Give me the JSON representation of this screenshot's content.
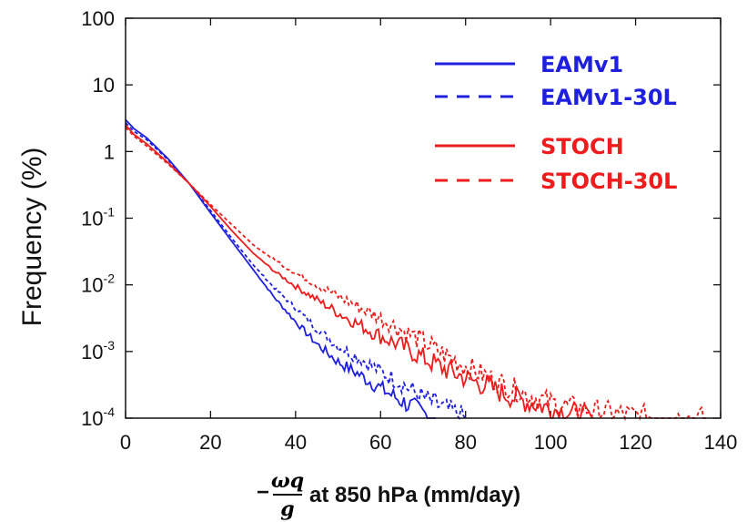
{
  "chart_data": {
    "type": "line",
    "title": "",
    "ylabel": "Frequency (%)",
    "xlabel": {
      "prefix": "−",
      "numerator": "ωq",
      "denominator": "g",
      "suffix": "at 850 hPa (mm/day)"
    },
    "xlim": [
      0,
      140
    ],
    "ylim": [
      0.0001,
      100
    ],
    "yscale": "log",
    "xticks": [
      "0",
      "20",
      "40",
      "60",
      "80",
      "100",
      "120",
      "140"
    ],
    "yticks": [
      {
        "base": "100",
        "exp": ""
      },
      {
        "base": "10",
        "exp": ""
      },
      {
        "base": "1",
        "exp": ""
      },
      {
        "base": "10",
        "exp": "-1"
      },
      {
        "base": "10",
        "exp": "-2"
      },
      {
        "base": "10",
        "exp": "-3"
      },
      {
        "base": "10",
        "exp": "-4"
      }
    ],
    "legend_position": "top-right",
    "series": [
      {
        "name": "EAMv1",
        "color": "#1f1fe0",
        "dash": "solid",
        "x": [
          0,
          2,
          5,
          10,
          15,
          20,
          25,
          30,
          35,
          40,
          45,
          50,
          55,
          60,
          65,
          70,
          73
        ],
        "y": [
          3.0,
          2.2,
          1.6,
          0.78,
          0.33,
          0.12,
          0.045,
          0.017,
          0.0065,
          0.0028,
          0.0013,
          0.0007,
          0.00045,
          0.00028,
          0.00018,
          0.00012,
          0.0001
        ]
      },
      {
        "name": "EAMv1-30L",
        "color": "#1f1fe0",
        "dash": "dashed",
        "x": [
          0,
          2,
          5,
          10,
          15,
          20,
          25,
          30,
          35,
          40,
          45,
          50,
          55,
          60,
          65,
          70,
          75,
          80
        ],
        "y": [
          2.7,
          2.0,
          1.5,
          0.75,
          0.33,
          0.13,
          0.05,
          0.02,
          0.009,
          0.0045,
          0.0022,
          0.0012,
          0.0008,
          0.0005,
          0.00033,
          0.0002,
          0.00014,
          0.0001
        ]
      },
      {
        "name": "STOCH",
        "color": "#ee1c1c",
        "dash": "solid",
        "x": [
          0,
          2,
          5,
          10,
          15,
          20,
          25,
          30,
          35,
          40,
          45,
          50,
          55,
          60,
          65,
          70,
          75,
          80,
          85,
          90,
          95,
          100,
          105,
          110
        ],
        "y": [
          2.5,
          1.8,
          1.3,
          0.68,
          0.33,
          0.15,
          0.065,
          0.03,
          0.016,
          0.0095,
          0.006,
          0.0038,
          0.0025,
          0.0017,
          0.0012,
          0.0008,
          0.00055,
          0.0004,
          0.0003,
          0.00022,
          0.00017,
          0.00014,
          0.00012,
          0.0001
        ]
      },
      {
        "name": "STOCH-30L",
        "color": "#ee1c1c",
        "dash": "dashed",
        "x": [
          0,
          2,
          5,
          10,
          15,
          20,
          25,
          30,
          35,
          40,
          45,
          50,
          55,
          60,
          65,
          70,
          75,
          80,
          85,
          90,
          95,
          100,
          110,
          120,
          130,
          137
        ],
        "y": [
          2.3,
          1.7,
          1.2,
          0.65,
          0.33,
          0.16,
          0.08,
          0.04,
          0.024,
          0.015,
          0.01,
          0.0068,
          0.0046,
          0.0032,
          0.0021,
          0.0014,
          0.0009,
          0.0006,
          0.00042,
          0.0003,
          0.00022,
          0.00017,
          0.00013,
          0.00011,
          0.0001,
          0.0001
        ]
      }
    ]
  }
}
